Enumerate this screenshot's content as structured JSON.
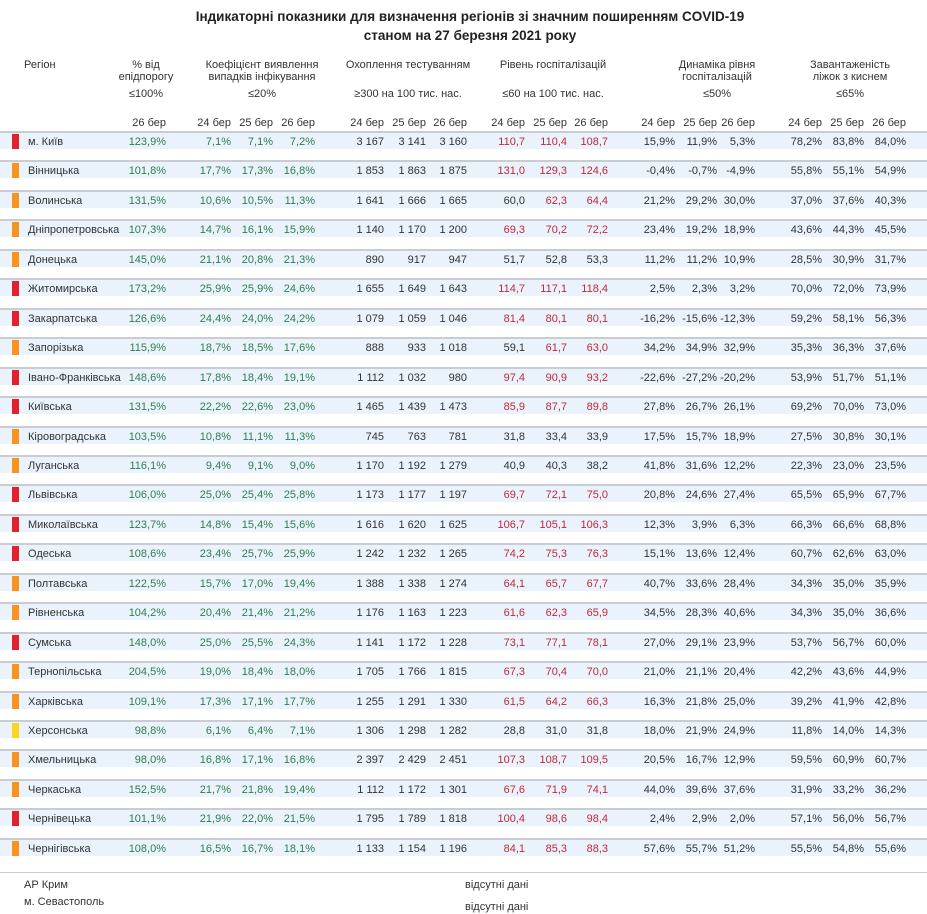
{
  "title": {
    "line1": "Індикаторні показники для визначення регіонів зі значним поширенням COVID-19",
    "line2": "станом на 27 березня 2021 року"
  },
  "columns": {
    "region": "Регіон",
    "epid": {
      "label1": "% від",
      "label2": "епідпорогу",
      "threshold": "≤100%",
      "dates": [
        "26 бер"
      ]
    },
    "coef": {
      "label1": "Коефіцієнт виявлення",
      "label2": "випадків інфікування",
      "threshold": "≤20%",
      "dates": [
        "24 бер",
        "25 бер",
        "26 бер"
      ]
    },
    "test": {
      "label1": "Охоплення тестуванням",
      "label2": "",
      "threshold": "≥300 на 100 тис. нас.",
      "dates": [
        "24 бер",
        "25 бер",
        "26 бер"
      ]
    },
    "hosp": {
      "label1": "Рівень госпіталізацій",
      "label2": "",
      "threshold": "≤60 на 100 тис. нас.",
      "dates": [
        "24 бер",
        "25 бер",
        "26 бер"
      ]
    },
    "dyn": {
      "label1": "Динаміка рівня",
      "label2": "госпіталізацій",
      "threshold": "≤50%",
      "dates": [
        "24 бер",
        "25 бер",
        "26 бер"
      ]
    },
    "beds": {
      "label1": "Завантаженість",
      "label2": "ліжок з киснем",
      "threshold": "≤65%",
      "dates": [
        "24 бер",
        "25 бер",
        "26 бер"
      ]
    }
  },
  "colors": {
    "red": "#e3202b",
    "orange": "#f7931e",
    "yellow": "#f9d71c",
    "green_text": "#2e7d4f",
    "red_text": "#c0283c",
    "band": "#eaf3fb"
  },
  "regions": [
    {
      "level": "red",
      "name": "м. Київ",
      "epid": "123,9%",
      "coef": [
        "7,1%",
        "7,1%",
        "7,2%"
      ],
      "test": [
        "3 167",
        "3 141",
        "3 160"
      ],
      "hosp": [
        "110,7",
        "110,4",
        "108,7"
      ],
      "dyn": [
        "15,9%",
        "11,9%",
        "5,3%"
      ],
      "beds": [
        "78,2%",
        "83,8%",
        "84,0%"
      ]
    },
    {
      "level": "orange",
      "name": "Вінницька",
      "epid": "101,8%",
      "coef": [
        "17,7%",
        "17,3%",
        "16,8%"
      ],
      "test": [
        "1 853",
        "1 863",
        "1 875"
      ],
      "hosp": [
        "131,0",
        "129,3",
        "124,6"
      ],
      "dyn": [
        "-0,4%",
        "-0,7%",
        "-4,9%"
      ],
      "beds": [
        "55,8%",
        "55,1%",
        "54,9%"
      ]
    },
    {
      "level": "orange",
      "name": "Волинська",
      "epid": "131,5%",
      "coef": [
        "10,6%",
        "10,5%",
        "11,3%"
      ],
      "test": [
        "1 641",
        "1 666",
        "1 665"
      ],
      "hosp": [
        "60,0",
        "62,3",
        "64,4"
      ],
      "dyn": [
        "21,2%",
        "29,2%",
        "30,0%"
      ],
      "beds": [
        "37,0%",
        "37,6%",
        "40,3%"
      ]
    },
    {
      "level": "orange",
      "name": "Дніпропетровська",
      "epid": "107,3%",
      "coef": [
        "14,7%",
        "16,1%",
        "15,9%"
      ],
      "test": [
        "1 140",
        "1 170",
        "1 200"
      ],
      "hosp": [
        "69,3",
        "70,2",
        "72,2"
      ],
      "dyn": [
        "23,4%",
        "19,2%",
        "18,9%"
      ],
      "beds": [
        "43,6%",
        "44,3%",
        "45,5%"
      ]
    },
    {
      "level": "orange",
      "name": "Донецька",
      "epid": "145,0%",
      "coef": [
        "21,1%",
        "20,8%",
        "21,3%"
      ],
      "test": [
        "890",
        "917",
        "947"
      ],
      "hosp": [
        "51,7",
        "52,8",
        "53,3"
      ],
      "dyn": [
        "11,2%",
        "11,2%",
        "10,9%"
      ],
      "beds": [
        "28,5%",
        "30,9%",
        "31,7%"
      ]
    },
    {
      "level": "red",
      "name": "Житомирська",
      "epid": "173,2%",
      "coef": [
        "25,9%",
        "25,9%",
        "24,6%"
      ],
      "test": [
        "1 655",
        "1 649",
        "1 643"
      ],
      "hosp": [
        "114,7",
        "117,1",
        "118,4"
      ],
      "dyn": [
        "2,5%",
        "2,3%",
        "3,2%"
      ],
      "beds": [
        "70,0%",
        "72,0%",
        "73,9%"
      ]
    },
    {
      "level": "red",
      "name": "Закарпатська",
      "epid": "126,6%",
      "coef": [
        "24,4%",
        "24,0%",
        "24,2%"
      ],
      "test": [
        "1 079",
        "1 059",
        "1 046"
      ],
      "hosp": [
        "81,4",
        "80,1",
        "80,1"
      ],
      "dyn": [
        "-16,2%",
        "-15,6%",
        "-12,3%"
      ],
      "beds": [
        "59,2%",
        "58,1%",
        "56,3%"
      ]
    },
    {
      "level": "orange",
      "name": "Запорізька",
      "epid": "115,9%",
      "coef": [
        "18,7%",
        "18,5%",
        "17,6%"
      ],
      "test": [
        "888",
        "933",
        "1 018"
      ],
      "hosp": [
        "59,1",
        "61,7",
        "63,0"
      ],
      "dyn": [
        "34,2%",
        "34,9%",
        "32,9%"
      ],
      "beds": [
        "35,3%",
        "36,3%",
        "37,6%"
      ]
    },
    {
      "level": "red",
      "name": "Івано-Франківська",
      "epid": "148,6%",
      "coef": [
        "17,8%",
        "18,4%",
        "19,1%"
      ],
      "test": [
        "1 112",
        "1 032",
        "980"
      ],
      "hosp": [
        "97,4",
        "90,9",
        "93,2"
      ],
      "dyn": [
        "-22,6%",
        "-27,2%",
        "-20,2%"
      ],
      "beds": [
        "53,9%",
        "51,7%",
        "51,1%"
      ]
    },
    {
      "level": "red",
      "name": "Київська",
      "epid": "131,5%",
      "coef": [
        "22,2%",
        "22,6%",
        "23,0%"
      ],
      "test": [
        "1 465",
        "1 439",
        "1 473"
      ],
      "hosp": [
        "85,9",
        "87,7",
        "89,8"
      ],
      "dyn": [
        "27,8%",
        "26,7%",
        "26,1%"
      ],
      "beds": [
        "69,2%",
        "70,0%",
        "73,0%"
      ]
    },
    {
      "level": "orange",
      "name": "Кіровоградська",
      "epid": "103,5%",
      "coef": [
        "10,8%",
        "11,1%",
        "11,3%"
      ],
      "test": [
        "745",
        "763",
        "781"
      ],
      "hosp": [
        "31,8",
        "33,4",
        "33,9"
      ],
      "dyn": [
        "17,5%",
        "15,7%",
        "18,9%"
      ],
      "beds": [
        "27,5%",
        "30,8%",
        "30,1%"
      ]
    },
    {
      "level": "orange",
      "name": "Луганська",
      "epid": "116,1%",
      "coef": [
        "9,4%",
        "9,1%",
        "9,0%"
      ],
      "test": [
        "1 170",
        "1 192",
        "1 279"
      ],
      "hosp": [
        "40,9",
        "40,3",
        "38,2"
      ],
      "dyn": [
        "41,8%",
        "31,6%",
        "12,2%"
      ],
      "beds": [
        "22,3%",
        "23,0%",
        "23,5%"
      ]
    },
    {
      "level": "red",
      "name": "Львівська",
      "epid": "106,0%",
      "coef": [
        "25,0%",
        "25,4%",
        "25,8%"
      ],
      "test": [
        "1 173",
        "1 177",
        "1 197"
      ],
      "hosp": [
        "69,7",
        "72,1",
        "75,0"
      ],
      "dyn": [
        "20,8%",
        "24,6%",
        "27,4%"
      ],
      "beds": [
        "65,5%",
        "65,9%",
        "67,7%"
      ]
    },
    {
      "level": "red",
      "name": "Миколаївська",
      "epid": "123,7%",
      "coef": [
        "14,8%",
        "15,4%",
        "15,6%"
      ],
      "test": [
        "1 616",
        "1 620",
        "1 625"
      ],
      "hosp": [
        "106,7",
        "105,1",
        "106,3"
      ],
      "dyn": [
        "12,3%",
        "3,9%",
        "6,3%"
      ],
      "beds": [
        "66,3%",
        "66,6%",
        "68,8%"
      ]
    },
    {
      "level": "red",
      "name": "Одеська",
      "epid": "108,6%",
      "coef": [
        "23,4%",
        "25,7%",
        "25,9%"
      ],
      "test": [
        "1 242",
        "1 232",
        "1 265"
      ],
      "hosp": [
        "74,2",
        "75,3",
        "76,3"
      ],
      "dyn": [
        "15,1%",
        "13,6%",
        "12,4%"
      ],
      "beds": [
        "60,7%",
        "62,6%",
        "63,0%"
      ]
    },
    {
      "level": "orange",
      "name": "Полтавська",
      "epid": "122,5%",
      "coef": [
        "15,7%",
        "17,0%",
        "19,4%"
      ],
      "test": [
        "1 388",
        "1 338",
        "1 274"
      ],
      "hosp": [
        "64,1",
        "65,7",
        "67,7"
      ],
      "dyn": [
        "40,7%",
        "33,6%",
        "28,4%"
      ],
      "beds": [
        "34,3%",
        "35,0%",
        "35,9%"
      ]
    },
    {
      "level": "orange",
      "name": "Рівненська",
      "epid": "104,2%",
      "coef": [
        "20,4%",
        "21,4%",
        "21,2%"
      ],
      "test": [
        "1 176",
        "1 163",
        "1 223"
      ],
      "hosp": [
        "61,6",
        "62,3",
        "65,9"
      ],
      "dyn": [
        "34,5%",
        "28,3%",
        "40,6%"
      ],
      "beds": [
        "34,3%",
        "35,0%",
        "36,6%"
      ]
    },
    {
      "level": "red",
      "name": "Сумська",
      "epid": "148,0%",
      "coef": [
        "25,0%",
        "25,5%",
        "24,3%"
      ],
      "test": [
        "1 141",
        "1 172",
        "1 228"
      ],
      "hosp": [
        "73,1",
        "77,1",
        "78,1"
      ],
      "dyn": [
        "27,0%",
        "29,1%",
        "23,9%"
      ],
      "beds": [
        "53,7%",
        "56,7%",
        "60,0%"
      ]
    },
    {
      "level": "orange",
      "name": "Тернопільська",
      "epid": "204,5%",
      "coef": [
        "19,0%",
        "18,4%",
        "18,0%"
      ],
      "test": [
        "1 705",
        "1 766",
        "1 815"
      ],
      "hosp": [
        "67,3",
        "70,4",
        "70,0"
      ],
      "dyn": [
        "21,0%",
        "21,1%",
        "20,4%"
      ],
      "beds": [
        "42,2%",
        "43,6%",
        "44,9%"
      ]
    },
    {
      "level": "orange",
      "name": "Харківська",
      "epid": "109,1%",
      "coef": [
        "17,3%",
        "17,1%",
        "17,7%"
      ],
      "test": [
        "1 255",
        "1 291",
        "1 330"
      ],
      "hosp": [
        "61,5",
        "64,2",
        "66,3"
      ],
      "dyn": [
        "16,3%",
        "21,8%",
        "25,0%"
      ],
      "beds": [
        "39,2%",
        "41,9%",
        "42,8%"
      ]
    },
    {
      "level": "yellow",
      "name": "Херсонська",
      "epid": "98,8%",
      "coef": [
        "6,1%",
        "6,4%",
        "7,1%"
      ],
      "test": [
        "1 306",
        "1 298",
        "1 282"
      ],
      "hosp": [
        "28,8",
        "31,0",
        "31,8"
      ],
      "dyn": [
        "18,0%",
        "21,9%",
        "24,9%"
      ],
      "beds": [
        "11,8%",
        "14,0%",
        "14,3%"
      ]
    },
    {
      "level": "orange",
      "name": "Хмельницька",
      "epid": "98,0%",
      "coef": [
        "16,8%",
        "17,1%",
        "16,8%"
      ],
      "test": [
        "2 397",
        "2 429",
        "2 451"
      ],
      "hosp": [
        "107,3",
        "108,7",
        "109,5"
      ],
      "dyn": [
        "20,5%",
        "16,7%",
        "12,9%"
      ],
      "beds": [
        "59,5%",
        "60,9%",
        "60,7%"
      ]
    },
    {
      "level": "orange",
      "name": "Черкаська",
      "epid": "152,5%",
      "coef": [
        "21,7%",
        "21,8%",
        "19,4%"
      ],
      "test": [
        "1 112",
        "1 172",
        "1 301"
      ],
      "hosp": [
        "67,6",
        "71,9",
        "74,1"
      ],
      "dyn": [
        "44,0%",
        "39,6%",
        "37,6%"
      ],
      "beds": [
        "31,9%",
        "33,2%",
        "36,2%"
      ]
    },
    {
      "level": "red",
      "name": "Чернівецька",
      "epid": "101,1%",
      "coef": [
        "21,9%",
        "22,0%",
        "21,5%"
      ],
      "test": [
        "1 795",
        "1 789",
        "1 818"
      ],
      "hosp": [
        "100,4",
        "98,6",
        "98,4"
      ],
      "dyn": [
        "2,4%",
        "2,9%",
        "2,0%"
      ],
      "beds": [
        "57,1%",
        "56,0%",
        "56,7%"
      ]
    },
    {
      "level": "orange",
      "name": "Чернігівська",
      "epid": "108,0%",
      "coef": [
        "16,5%",
        "16,7%",
        "18,1%"
      ],
      "test": [
        "1 133",
        "1 154",
        "1 196"
      ],
      "hosp": [
        "84,1",
        "85,3",
        "88,3"
      ],
      "dyn": [
        "57,6%",
        "55,7%",
        "51,2%"
      ],
      "beds": [
        "55,5%",
        "54,8%",
        "55,6%"
      ]
    }
  ],
  "missing": [
    {
      "name": "АР Крим",
      "note": "відсутні дані"
    },
    {
      "name": "м. Севастополь",
      "note": "відсутні дані"
    }
  ]
}
